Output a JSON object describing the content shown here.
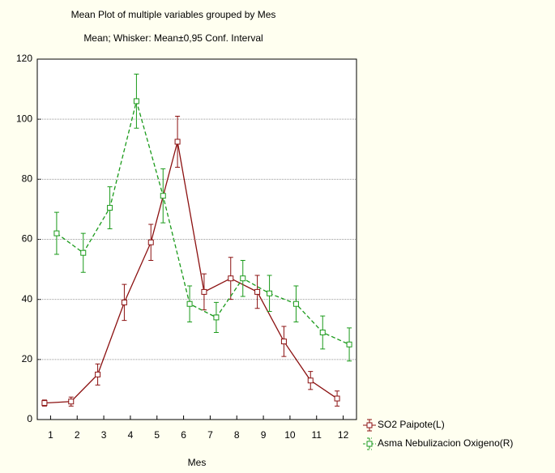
{
  "chart_data": {
    "type": "line",
    "title": "Mean Plot of multiple variables grouped by  Mes",
    "subtitle": "Mean; Whisker: Mean±0,95 Conf. Interval",
    "x_label": "Mes",
    "categories": [
      1,
      2,
      3,
      4,
      5,
      6,
      7,
      8,
      9,
      10,
      11,
      12
    ],
    "series": [
      {
        "name": "SO2 Paipote(L)",
        "color": "#8b1010",
        "dash": "solid",
        "values": [
          5.5,
          6,
          15,
          39,
          59,
          92.5,
          42.5,
          47,
          42.5,
          26,
          13,
          7
        ],
        "errors": [
          1,
          1.5,
          3.5,
          6,
          6,
          8.5,
          6,
          7,
          5.5,
          5,
          3,
          2.5
        ]
      },
      {
        "name": "Asma Nebulizacion Oxigeno(R)",
        "color": "#1a9a1a",
        "dash": "dashed",
        "values": [
          62,
          55.5,
          70.5,
          106,
          74.5,
          38.5,
          34,
          47,
          42,
          38.5,
          29,
          25
        ],
        "errors": [
          7,
          6.5,
          7,
          9,
          9,
          6,
          5,
          6,
          6,
          6,
          5.5,
          5.5
        ]
      }
    ],
    "ylim": [
      0,
      120
    ],
    "yticks": [
      0,
      20,
      40,
      60,
      80,
      100,
      120
    ],
    "grid": true,
    "legend": "bottom-right"
  }
}
